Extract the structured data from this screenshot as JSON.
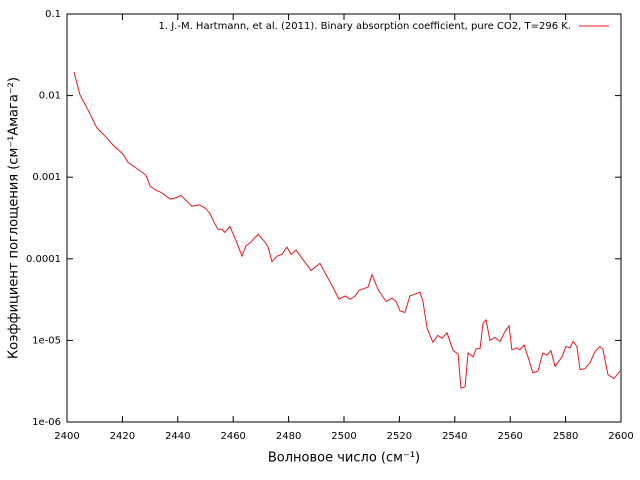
{
  "chart_data": {
    "type": "line",
    "xlabel": "Волновое число (см⁻¹)",
    "ylabel": "Коэффициент поглощения (см⁻¹Амага⁻²)",
    "xlim": [
      2400,
      2600
    ],
    "xticks": [
      2400,
      2420,
      2440,
      2460,
      2480,
      2500,
      2520,
      2540,
      2560,
      2580,
      2600
    ],
    "ylim": [
      1e-06,
      0.1
    ],
    "ylog": true,
    "yticks": [
      0.1,
      0.01,
      0.001,
      0.0001,
      {
        "value": 1e-05,
        "label": "1e-05"
      },
      {
        "value": 1e-06,
        "label": "1e-06"
      }
    ],
    "legend": "top-right",
    "series": [
      {
        "name": "1. J.-M. Hartmann, et al. (2011). Binary absorption coefficient, pure CO2, T=296 K.",
        "color": "#e41a1c",
        "x": [
          2402.5,
          2404.7,
          2407.6,
          2410.8,
          2413.7,
          2416.6,
          2420.2,
          2422,
          2424.9,
          2428.5,
          2430,
          2431.8,
          2434,
          2437.2,
          2439.4,
          2441.2,
          2443,
          2445.1,
          2447.7,
          2449.8,
          2451.6,
          2453.1,
          2454.5,
          2456,
          2457,
          2458.8,
          2460.6,
          2463.2,
          2464.6,
          2466.4,
          2469,
          2471.5,
          2472.6,
          2474,
          2475.8,
          2477.6,
          2479.4,
          2480.9,
          2482.7,
          2484.8,
          2488.1,
          2491.3,
          2493.1,
          2496,
          2498.2,
          2500.4,
          2502.2,
          2504,
          2505.4,
          2508.7,
          2510.1,
          2512.3,
          2515.2,
          2517.3,
          2518.8,
          2520.2,
          2522,
          2523.8,
          2525.6,
          2527.4,
          2528.5,
          2530,
          2532.1,
          2533.9,
          2535.4,
          2537.2,
          2539.4,
          2541.2,
          2542.2,
          2543.7,
          2544.8,
          2546.6,
          2547.7,
          2549.1,
          2550.2,
          2551.3,
          2552.7,
          2554.5,
          2556.3,
          2558.1,
          2559.6,
          2560.6,
          2562.5,
          2563.5,
          2565,
          2566.4,
          2568.2,
          2570,
          2571.8,
          2573.3,
          2574.7,
          2576.2,
          2578.7,
          2580.1,
          2581.6,
          2582.7,
          2584.1,
          2585.2,
          2587,
          2588.8,
          2590.6,
          2592.4,
          2593.5,
          2595.3,
          2597.5,
          2599.6
        ],
        "values": [
          0.0195,
          0.0102,
          0.00667,
          0.00401,
          0.0032,
          0.00248,
          0.00192,
          0.00153,
          0.0013,
          0.00106,
          0.00078,
          0.0007,
          0.00065,
          0.00054,
          0.00056,
          0.0006,
          0.00052,
          0.00044,
          0.00046,
          0.00042,
          0.00036,
          0.00028,
          0.00023,
          0.00023,
          0.00021,
          0.00025,
          0.00018,
          0.000108,
          0.000144,
          0.00016,
          0.0002,
          0.00016,
          0.000139,
          9.2e-05,
          0.000108,
          0.000113,
          0.000139,
          0.000113,
          0.000128,
          0.000102,
          7.2e-05,
          8.8e-05,
          6.8e-05,
          4.5e-05,
          3.2e-05,
          3.5e-05,
          3.2e-05,
          3.5e-05,
          4.1e-05,
          4.5e-05,
          6.4e-05,
          4.2e-05,
          3e-05,
          3.3e-05,
          3e-05,
          2.3e-05,
          2.2e-05,
          3.5e-05,
          3.7e-05,
          3.9e-05,
          3e-05,
          1.41e-05,
          9.5e-06,
          1.15e-05,
          1.06e-05,
          1.24e-05,
          7.5e-06,
          6.8e-06,
          2.6e-06,
          2.7e-06,
          7e-06,
          6.3e-06,
          7.9e-06,
          7.9e-06,
          1.63e-05,
          1.78e-05,
          1e-05,
          1.09e-05,
          9.7e-06,
          1.28e-05,
          1.51e-05,
          7.7e-06,
          8.1e-06,
          7.7e-06,
          8.8e-06,
          6.3e-06,
          4e-06,
          4.2e-06,
          7e-06,
          6.6e-06,
          7.5e-06,
          4.8e-06,
          6.3e-06,
          8.4e-06,
          8.1e-06,
          9.7e-06,
          8.4e-06,
          4.4e-06,
          4.5e-06,
          5.3e-06,
          7.3e-06,
          8.4e-06,
          7.7e-06,
          3.8e-06,
          3.4e-06,
          4.2e-06
        ]
      }
    ]
  }
}
